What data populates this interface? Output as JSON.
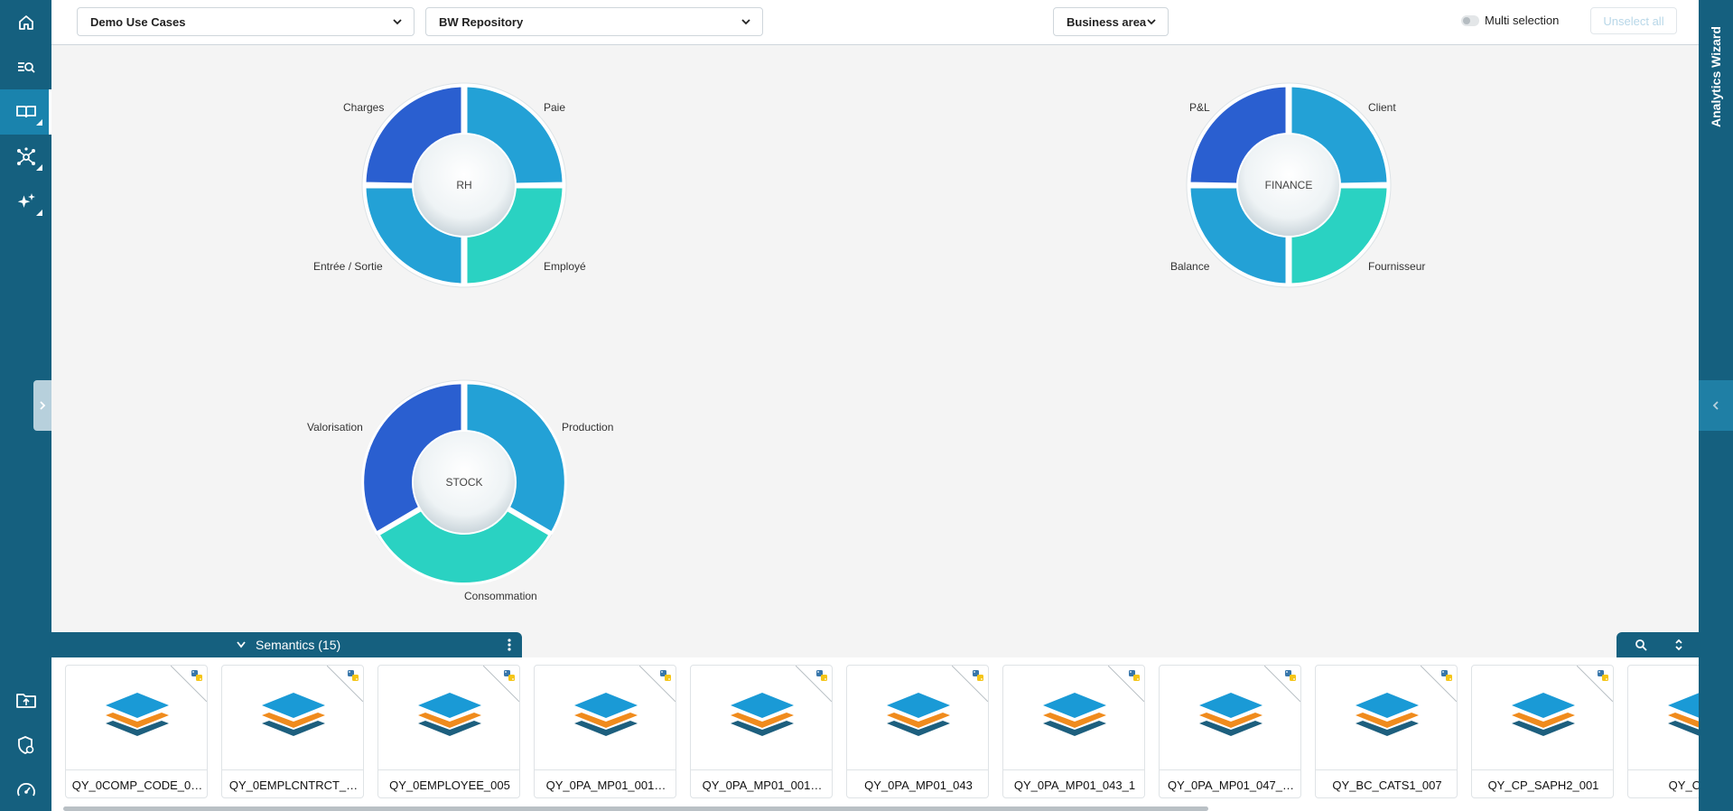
{
  "header": {
    "dropdown_use_cases": "Demo Use Cases",
    "dropdown_repository": "BW Repository",
    "dropdown_business_area": "Business area",
    "multi_selection_label": "Multi selection",
    "unselect_all_label": "Unselect all"
  },
  "sidebar": {
    "items": [
      {
        "icon": "home-icon"
      },
      {
        "icon": "search-list-icon"
      },
      {
        "icon": "book-icon"
      },
      {
        "icon": "network-icon"
      },
      {
        "icon": "sparkles-icon"
      }
    ],
    "bottom_items": [
      {
        "icon": "folder-upload-icon"
      },
      {
        "icon": "shield-settings-icon"
      },
      {
        "icon": "dashboard-gauge-icon"
      }
    ]
  },
  "right_rail": {
    "title": "Analytics Wizard"
  },
  "donuts": [
    {
      "center": "RH",
      "segments": [
        "Charges",
        "Paie",
        "Employé",
        "Entrée / Sortie"
      ]
    },
    {
      "center": "FINANCE",
      "segments": [
        "P&L",
        "Client",
        "Fournisseur",
        "Balance"
      ]
    },
    {
      "center": "STOCK",
      "segments": [
        "Valorisation",
        "Production",
        "Consommation"
      ]
    }
  ],
  "colors": {
    "sidebar": "#15607f",
    "segment_dark_blue": "#2a5fd0",
    "segment_mid_blue": "#23a1d6",
    "segment_teal": "#2ad2c2",
    "stack_blue": "#1a9ad6",
    "stack_orange": "#f08b1d",
    "stack_navy": "#1d5f7e"
  },
  "semantics": {
    "title": "Semantics",
    "count": "(15)",
    "cards": [
      "QY_0COMP_CODE_0…",
      "QY_0EMPLCNTRCT_…",
      "QY_0EMPLOYEE_005",
      "QY_0PA_MP01_001…",
      "QY_0PA_MP01_001…",
      "QY_0PA_MP01_043",
      "QY_0PA_MP01_043_1",
      "QY_0PA_MP01_047_…",
      "QY_BC_CATS1_007",
      "QY_CP_SAPH2_001",
      "QY_CP_SA"
    ]
  }
}
